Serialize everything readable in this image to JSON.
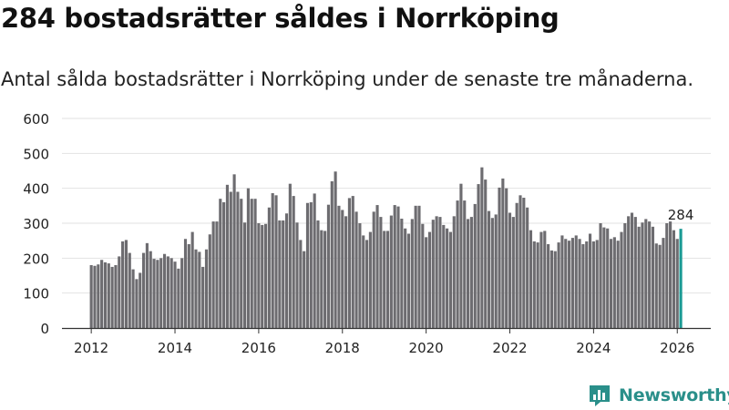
{
  "title": "284 bostadsrätter såldes i Norrköping",
  "subtitle": "Antal sålda bostadsrätter i Norrköping under de senaste tre månaderna.",
  "colors": {
    "bar": "#6d6c70",
    "highlight": "#1a9a94",
    "grid": "#e2e2e2",
    "axis": "#333333",
    "text": "#222222",
    "brand": "#2a8f8a"
  },
  "brand": {
    "name": "Newsworthy",
    "icon": "bar-chart-logo-icon"
  },
  "chart_data": {
    "type": "bar",
    "title": "284 bostadsrätter såldes i Norrköping",
    "subtitle": "Antal sålda bostadsrätter i Norrköping under de senaste tre månaderna.",
    "xlabel": "",
    "ylabel": "",
    "start": "2012-01",
    "end": "2026-01",
    "xlim": [
      2011.3,
      2026.8
    ],
    "ylim": [
      0,
      600
    ],
    "yticks": [
      0,
      100,
      200,
      300,
      400,
      500,
      600
    ],
    "xticks": [
      2012,
      2014,
      2016,
      2018,
      2020,
      2022,
      2024,
      2026
    ],
    "grid": true,
    "highlight_label": "284",
    "values": [
      180,
      178,
      182,
      195,
      188,
      185,
      175,
      180,
      205,
      248,
      252,
      215,
      168,
      140,
      158,
      215,
      243,
      220,
      198,
      195,
      200,
      212,
      205,
      200,
      190,
      170,
      200,
      255,
      240,
      275,
      225,
      218,
      175,
      225,
      268,
      305,
      305,
      370,
      360,
      410,
      390,
      440,
      390,
      370,
      302,
      400,
      370,
      370,
      300,
      295,
      298,
      345,
      386,
      380,
      308,
      308,
      328,
      413,
      378,
      302,
      252,
      220,
      358,
      360,
      385,
      308,
      280,
      278,
      353,
      420,
      448,
      350,
      338,
      320,
      372,
      378,
      333,
      300,
      265,
      252,
      275,
      333,
      352,
      318,
      278,
      278,
      322,
      352,
      348,
      313,
      285,
      270,
      312,
      350,
      350,
      298,
      260,
      275,
      310,
      320,
      318,
      295,
      285,
      275,
      320,
      365,
      413,
      365,
      312,
      318,
      355,
      412,
      460,
      425,
      335,
      315,
      325,
      402,
      428,
      400,
      330,
      318,
      358,
      380,
      373,
      345,
      280,
      248,
      245,
      275,
      278,
      240,
      222,
      220,
      245,
      265,
      255,
      250,
      258,
      265,
      255,
      240,
      248,
      270,
      248,
      252,
      300,
      288,
      285,
      255,
      260,
      250,
      275,
      300,
      320,
      330,
      318,
      290,
      302,
      312,
      305,
      290,
      242,
      238,
      258,
      300,
      305,
      280,
      255,
      284
    ]
  }
}
